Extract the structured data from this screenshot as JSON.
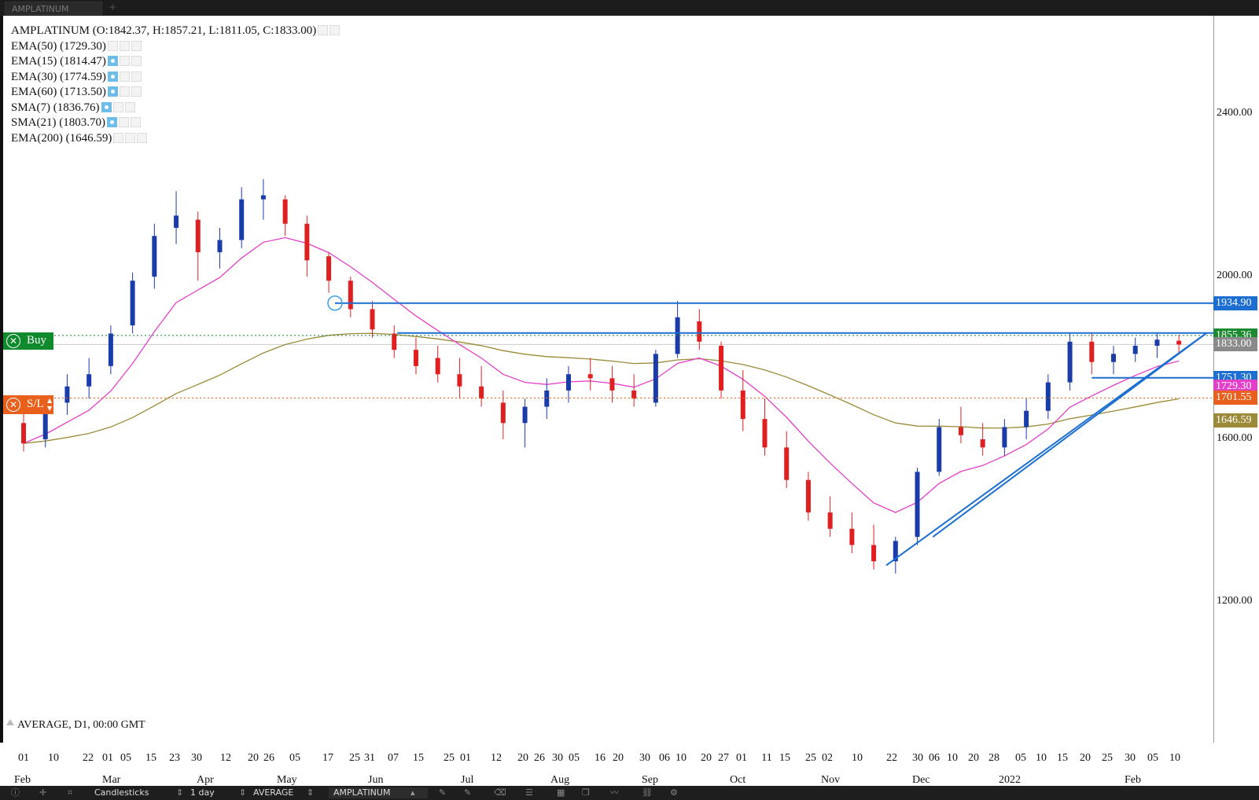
{
  "tab": {
    "label": "AMPLATINUM",
    "plus": "+"
  },
  "legend": [
    {
      "text": "AMPLATINUM (O:1842.37, H:1857.21, L:1811.05, C:1833.00)",
      "eye": false,
      "buttons": 2
    },
    {
      "text": "EMA(50) (1729.30)",
      "eye": false,
      "buttons": 3
    },
    {
      "text": "EMA(15) (1814.47)",
      "eye": true,
      "buttons": 3
    },
    {
      "text": "EMA(30) (1774.59)",
      "eye": true,
      "buttons": 3
    },
    {
      "text": "EMA(60) (1713.50)",
      "eye": true,
      "buttons": 3
    },
    {
      "text": "SMA(7) (1836.76)",
      "eye": true,
      "buttons": 3
    },
    {
      "text": "SMA(21) (1803.70)",
      "eye": true,
      "buttons": 3
    },
    {
      "text": "EMA(200) (1646.59)",
      "eye": false,
      "buttons": 3
    }
  ],
  "footer_text": "AVERAGE, D1, 00:00 GMT",
  "orders": {
    "buy": {
      "label": "Buy",
      "price": 1855.36,
      "color": "#0f8a2c"
    },
    "sl": {
      "label": "S/L",
      "price": 1701.55,
      "color": "#e8601c"
    }
  },
  "price_tags": [
    {
      "text": "1934.90",
      "bg": "#1c6fd0"
    },
    {
      "text": "1855.36",
      "bg": "#1c8a30"
    },
    {
      "text": "1833.00",
      "bg": "#8a8a8a"
    },
    {
      "text": "1751.30",
      "bg": "#1c6fd0"
    },
    {
      "text": "1729.30",
      "bg": "#e43fc9"
    },
    {
      "text": "1701.55",
      "bg": "#e8601c"
    },
    {
      "text": "1646.59",
      "bg": "#9b8a38"
    }
  ],
  "toolbar": {
    "chart_type": "Candlesticks",
    "interval": "1 day",
    "price_type": "AVERAGE",
    "symbol": "AMPLATINUM"
  },
  "chart_data": {
    "type": "candlestick",
    "title": "AMPLATINUM",
    "y_axis": {
      "ticks": [
        1200,
        1600,
        2000,
        2400
      ],
      "tick_labels": [
        "1200.00",
        "1600.00",
        "2000.00",
        "2400.00"
      ],
      "range": [
        1000,
        2600
      ],
      "position": "right"
    },
    "x_axis": {
      "day_labels": [
        "01",
        "10",
        "22",
        "01",
        "05",
        "15",
        "23",
        "30",
        "12",
        "20",
        "26",
        "05",
        "17",
        "25",
        "31",
        "07",
        "15",
        "25",
        "01",
        "12",
        "20",
        "26",
        "30",
        "05",
        "16",
        "20",
        "30",
        "06",
        "10",
        "20",
        "27",
        "01",
        "11",
        "15",
        "25",
        "02",
        "10",
        "22",
        "30",
        "06",
        "10",
        "20",
        "28",
        "05",
        "10",
        "15",
        "20",
        "25",
        "30",
        "05",
        "10"
      ],
      "month_labels": [
        "Feb",
        "Mar",
        "Apr",
        "May",
        "Jun",
        "Jul",
        "Aug",
        "Sep",
        "Oct",
        "Nov",
        "Dec",
        "2022",
        "Feb"
      ],
      "range": [
        "2021-02-01",
        "2022-02-12"
      ]
    },
    "candles_ohlc": [
      [
        "2021-02-01",
        1640,
        1665,
        1570,
        1590
      ],
      [
        "2021-02-08",
        1600,
        1700,
        1580,
        1680
      ],
      [
        "2021-02-15",
        1690,
        1760,
        1660,
        1730
      ],
      [
        "2021-02-22",
        1730,
        1800,
        1700,
        1760
      ],
      [
        "2021-03-01",
        1780,
        1880,
        1760,
        1860
      ],
      [
        "2021-03-08",
        1880,
        2010,
        1860,
        1990
      ],
      [
        "2021-03-15",
        2000,
        2130,
        1970,
        2100
      ],
      [
        "2021-03-22",
        2120,
        2210,
        2080,
        2150
      ],
      [
        "2021-03-29",
        2140,
        2160,
        1990,
        2060
      ],
      [
        "2021-04-05",
        2060,
        2120,
        2020,
        2090
      ],
      [
        "2021-04-12",
        2090,
        2220,
        2070,
        2190
      ],
      [
        "2021-04-19",
        2190,
        2240,
        2140,
        2200
      ],
      [
        "2021-04-26",
        2190,
        2200,
        2100,
        2130
      ],
      [
        "2021-05-03",
        2130,
        2150,
        2000,
        2040
      ],
      [
        "2021-05-10",
        2050,
        2060,
        1960,
        1990
      ],
      [
        "2021-05-17",
        1990,
        2000,
        1900,
        1920
      ],
      [
        "2021-05-24",
        1920,
        1940,
        1850,
        1870
      ],
      [
        "2021-05-31",
        1860,
        1880,
        1800,
        1820
      ],
      [
        "2021-06-07",
        1820,
        1850,
        1760,
        1780
      ],
      [
        "2021-06-14",
        1800,
        1830,
        1740,
        1760
      ],
      [
        "2021-06-21",
        1760,
        1800,
        1700,
        1730
      ],
      [
        "2021-06-28",
        1730,
        1780,
        1680,
        1700
      ],
      [
        "2021-07-05",
        1690,
        1720,
        1600,
        1640
      ],
      [
        "2021-07-12",
        1640,
        1700,
        1580,
        1680
      ],
      [
        "2021-07-19",
        1680,
        1750,
        1650,
        1720
      ],
      [
        "2021-07-26",
        1720,
        1780,
        1690,
        1760
      ],
      [
        "2021-08-02",
        1760,
        1800,
        1720,
        1750
      ],
      [
        "2021-08-09",
        1750,
        1780,
        1690,
        1720
      ],
      [
        "2021-08-16",
        1720,
        1760,
        1680,
        1700
      ],
      [
        "2021-08-23",
        1690,
        1820,
        1680,
        1810
      ],
      [
        "2021-08-30",
        1810,
        1940,
        1800,
        1900
      ],
      [
        "2021-09-06",
        1890,
        1920,
        1820,
        1840
      ],
      [
        "2021-09-13",
        1830,
        1840,
        1700,
        1720
      ],
      [
        "2021-09-20",
        1720,
        1770,
        1620,
        1650
      ],
      [
        "2021-09-27",
        1650,
        1700,
        1560,
        1580
      ],
      [
        "2021-10-04",
        1580,
        1620,
        1480,
        1500
      ],
      [
        "2021-10-11",
        1500,
        1520,
        1400,
        1420
      ],
      [
        "2021-10-18",
        1420,
        1460,
        1360,
        1380
      ],
      [
        "2021-10-25",
        1380,
        1420,
        1320,
        1340
      ],
      [
        "2021-11-01",
        1340,
        1390,
        1280,
        1300
      ],
      [
        "2021-11-08",
        1300,
        1360,
        1270,
        1350
      ],
      [
        "2021-11-15",
        1360,
        1530,
        1340,
        1520
      ],
      [
        "2021-11-22",
        1520,
        1650,
        1510,
        1630
      ],
      [
        "2021-11-29",
        1630,
        1680,
        1590,
        1610
      ],
      [
        "2021-12-06",
        1600,
        1640,
        1560,
        1580
      ],
      [
        "2021-12-13",
        1580,
        1650,
        1560,
        1630
      ],
      [
        "2021-12-20",
        1630,
        1700,
        1600,
        1670
      ],
      [
        "2021-12-27",
        1670,
        1760,
        1650,
        1740
      ],
      [
        "2022-01-03",
        1740,
        1860,
        1720,
        1840
      ],
      [
        "2022-01-10",
        1840,
        1860,
        1760,
        1790
      ],
      [
        "2022-01-17",
        1790,
        1830,
        1760,
        1810
      ],
      [
        "2022-01-24",
        1810,
        1850,
        1790,
        1830
      ],
      [
        "2022-01-31",
        1830,
        1860,
        1800,
        1845
      ],
      [
        "2022-02-07",
        1842.37,
        1857.21,
        1811.05,
        1833.0
      ]
    ],
    "lines": [
      {
        "name": "EMA(50)",
        "color": "#e43fc9",
        "last": 1729.3
      },
      {
        "name": "EMA(200)",
        "color": "#9b8a38",
        "last": 1646.59
      }
    ],
    "horizontal_levels": [
      1934.9,
      1855.36,
      1833.0,
      1751.3,
      1701.55
    ],
    "colors": {
      "up": "#1a3ca8",
      "down": "#e02020",
      "level": "#1c6fd0"
    }
  }
}
